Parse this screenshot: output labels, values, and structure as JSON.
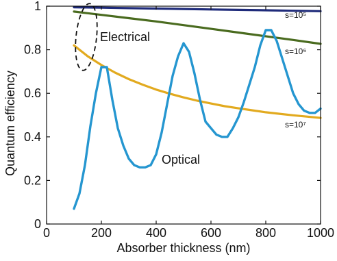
{
  "chart_data": {
    "type": "line",
    "title": "",
    "xlabel": "Absorber thickness (nm)",
    "ylabel": "Quantum efficiency",
    "xlim": [
      0,
      1000
    ],
    "ylim": [
      0,
      1
    ],
    "x_ticks": [
      "0",
      "200",
      "400",
      "600",
      "800",
      "1000"
    ],
    "y_ticks": [
      "0",
      "0.2",
      "0.4",
      "0.6",
      "0.8",
      "1"
    ],
    "grid": false,
    "legend": "none",
    "series": [
      {
        "label": "s=10⁵",
        "color": "#1f2b7a",
        "x": [
          100,
          200,
          300,
          400,
          500,
          600,
          700,
          800,
          900,
          1000
        ],
        "y": [
          0.995,
          0.993,
          0.991,
          0.989,
          0.987,
          0.985,
          0.983,
          0.981,
          0.979,
          0.977
        ]
      },
      {
        "label": "s=10⁶",
        "color": "#4a6b1f",
        "x": [
          100,
          200,
          300,
          400,
          500,
          600,
          700,
          800,
          900,
          1000
        ],
        "y": [
          0.975,
          0.96,
          0.945,
          0.93,
          0.913,
          0.896,
          0.879,
          0.862,
          0.845,
          0.827
        ]
      },
      {
        "label": "s=10⁷",
        "color": "#e2aa1f",
        "x": [
          100,
          150,
          200,
          250,
          300,
          350,
          400,
          450,
          500,
          550,
          600,
          650,
          700,
          750,
          800,
          850,
          900,
          950,
          1000
        ],
        "y": [
          0.82,
          0.77,
          0.73,
          0.695,
          0.665,
          0.64,
          0.617,
          0.598,
          0.581,
          0.566,
          0.553,
          0.541,
          0.531,
          0.522,
          0.513,
          0.506,
          0.499,
          0.493,
          0.487
        ]
      },
      {
        "label": "Optical",
        "color": "#2596d0",
        "x": [
          100,
          120,
          140,
          160,
          180,
          200,
          220,
          240,
          260,
          280,
          300,
          320,
          340,
          360,
          380,
          400,
          420,
          440,
          460,
          480,
          500,
          520,
          540,
          560,
          580,
          600,
          620,
          640,
          660,
          680,
          700,
          720,
          740,
          760,
          780,
          800,
          820,
          840,
          860,
          880,
          900,
          920,
          940,
          960,
          980,
          1000
        ],
        "y": [
          0.07,
          0.14,
          0.27,
          0.45,
          0.6,
          0.72,
          0.72,
          0.57,
          0.44,
          0.36,
          0.3,
          0.27,
          0.26,
          0.26,
          0.27,
          0.32,
          0.42,
          0.55,
          0.68,
          0.77,
          0.83,
          0.79,
          0.69,
          0.57,
          0.47,
          0.44,
          0.41,
          0.4,
          0.4,
          0.44,
          0.49,
          0.56,
          0.64,
          0.72,
          0.82,
          0.89,
          0.89,
          0.84,
          0.76,
          0.68,
          0.6,
          0.55,
          0.52,
          0.51,
          0.51,
          0.53
        ]
      }
    ],
    "annotations": [
      {
        "text": "Electrical",
        "color": "#111111"
      },
      {
        "text": "Optical",
        "color": "#111111"
      }
    ]
  }
}
